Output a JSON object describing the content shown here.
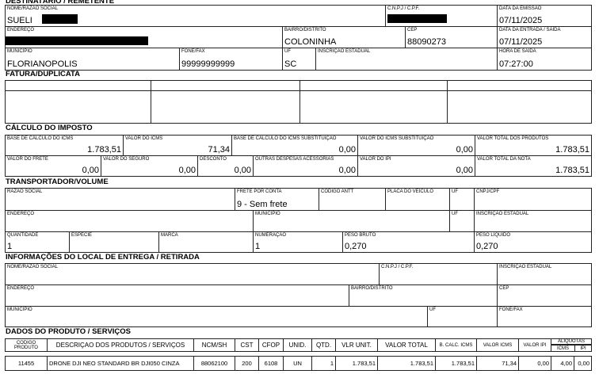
{
  "sections": {
    "destinatario": "DESTINATÁRIO / REMETENTE",
    "fatura": "FATURA/DUPLICATA",
    "calculo": "CÁLCULO DO IMPOSTO",
    "transportador": "TRANSPORTADOR/VOLUME",
    "entrega": "INFORMAÇÕES DO LOCAL DE ENTREGA / RETIRADA",
    "produtos": "DADOS DO PRODUTO / SERVIÇOS"
  },
  "dest": {
    "nome": {
      "label": "NOME/RAZÃO SOCIAL",
      "value": "SUELI"
    },
    "cnpj": {
      "label": "C.N.P.J / C.P.F.",
      "value": ""
    },
    "emissao": {
      "label": "DATA DA EMISSÃO",
      "value": "07/11/2025"
    },
    "endereco": {
      "label": "ENDEREÇO",
      "value": ""
    },
    "bairro": {
      "label": "BAIRRO/DISTRITO",
      "value": "COLONINHA"
    },
    "cep": {
      "label": "CEP",
      "value": "88090273"
    },
    "entrada": {
      "label": "DATA DA ENTRADA / SAÍDA",
      "value": "07/11/2025"
    },
    "municipio": {
      "label": "MUNICÍPIO",
      "value": "FLORIANOPOLIS"
    },
    "fone": {
      "label": "FONE/FAX",
      "value": "99999999999"
    },
    "uf": {
      "label": "UF",
      "value": "SC"
    },
    "ie": {
      "label": "INSCRIÇÃO ESTADUAL",
      "value": ""
    },
    "hora": {
      "label": "HORA DE SAÍDA",
      "value": "07:27:00"
    }
  },
  "calc": {
    "bc_icms": {
      "label": "BASE DE CÁLCULO DO ICMS",
      "value": "1.783,51"
    },
    "v_icms": {
      "label": "VALOR DO ICMS",
      "value": "71,34"
    },
    "bc_st": {
      "label": "BASE DE CÁLCULO DO ICMS SUBSTITUIÇÃO",
      "value": "0,00"
    },
    "v_st": {
      "label": "VALOR DO ICMS SUBSTITUIÇÃO",
      "value": "0,00"
    },
    "v_prod": {
      "label": "VALOR TOTAL DOS PRODUTOS",
      "value": "1.783,51"
    },
    "frete": {
      "label": "VALOR DO FRETE",
      "value": "0,00"
    },
    "seguro": {
      "label": "VALOR DO SEGURO",
      "value": "0,00"
    },
    "desconto": {
      "label": "DESCONTO",
      "value": "0,00"
    },
    "outras": {
      "label": "OUTRAS DESPESAS ACESSÓRIAS",
      "value": "0,00"
    },
    "ipi": {
      "label": "VALOR DO IPI",
      "value": "0,00"
    },
    "v_nota": {
      "label": "VALOR TOTAL DA NOTA",
      "value": "1.783,51"
    }
  },
  "transp": {
    "razao": {
      "label": "RAZÃO SOCIAL",
      "value": ""
    },
    "frete": {
      "label": "FRETE POR CONTA",
      "value": "9 - Sem frete"
    },
    "antt": {
      "label": "CODIGO ANTT",
      "value": ""
    },
    "placa": {
      "label": "PLACA DO VEÍCULO",
      "value": ""
    },
    "uf1": {
      "label": "UF",
      "value": ""
    },
    "cnpj": {
      "label": "CNPJ/CPF",
      "value": ""
    },
    "endereco": {
      "label": "ENDEREÇO",
      "value": ""
    },
    "municipio": {
      "label": "MUNICÍPIO",
      "value": ""
    },
    "uf2": {
      "label": "UF",
      "value": ""
    },
    "ie": {
      "label": "INSCRIÇÃO ESTADUAL",
      "value": ""
    },
    "qtd": {
      "label": "QUANTIDADE",
      "value": "1"
    },
    "especie": {
      "label": "ESPÉCIE",
      "value": ""
    },
    "marca": {
      "label": "MARCA",
      "value": ""
    },
    "numeracao": {
      "label": "NUMERAÇÃO",
      "value": "1"
    },
    "peso_bruto": {
      "label": "PESO BRUTO",
      "value": "0,270"
    },
    "peso_liq": {
      "label": "PESO LÍQUIDO",
      "value": "0,270"
    }
  },
  "entrega": {
    "nome": {
      "label": "NOME/RAZÃO SOCIAL",
      "value": ""
    },
    "cnpj": {
      "label": "C.N.P.J / C.P.F.",
      "value": ""
    },
    "ie": {
      "label": "INSCRIÇÃO ESTADUAL",
      "value": ""
    },
    "endereco": {
      "label": "ENDEREÇO",
      "value": ""
    },
    "bairro": {
      "label": "BAIRRO/DISTRITO",
      "value": ""
    },
    "cep": {
      "label": "CEP",
      "value": ""
    },
    "municipio": {
      "label": "MUNICÍPIO",
      "value": ""
    },
    "uf": {
      "label": "UF",
      "value": ""
    },
    "fone": {
      "label": "FONE/FAX",
      "value": ""
    }
  },
  "produtos": {
    "headers": [
      "CODIGO PRODUTO",
      "DESCRIÇAO DOS PRODUTOS / SERVIÇOS",
      "NCM/SH",
      "CST",
      "CFOP",
      "UNID.",
      "QTD.",
      "VLR UNIT.",
      "VALOR TOTAL",
      "B. CALC. ICMS",
      "VALOR ICMS",
      "VALOR IPI",
      "ALIQUOTAS",
      "ICMS",
      "IPI"
    ],
    "rows": [
      [
        "11455",
        "DRONE DJI NEO STANDARD BR DJI050 CINZA",
        "88062100",
        "200",
        "6108",
        "UN",
        "1",
        "1.783,51",
        "1.783,51",
        "1.783,51",
        "71,34",
        "0,00",
        "4,00",
        "0,00"
      ]
    ]
  }
}
